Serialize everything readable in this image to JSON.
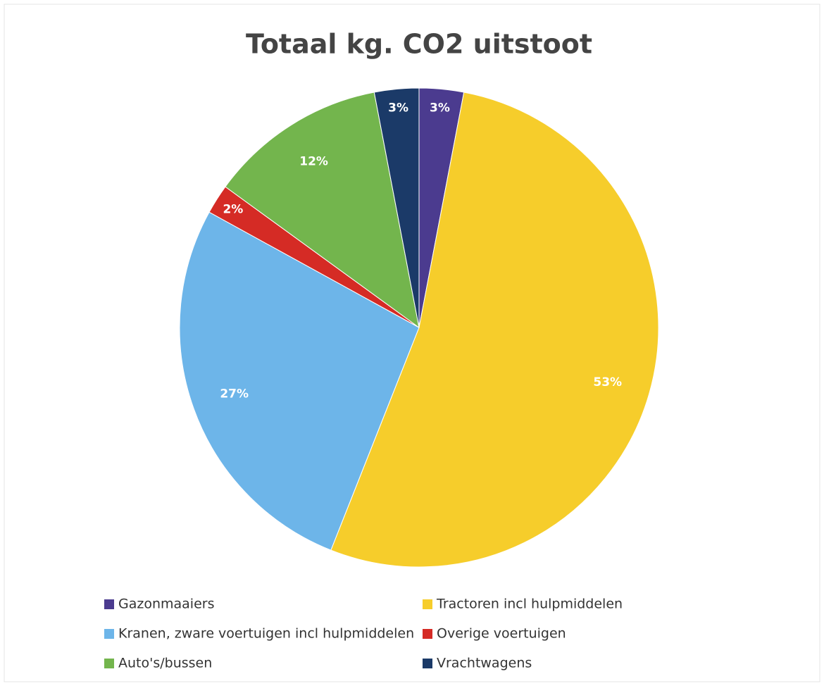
{
  "chart_data": {
    "type": "pie",
    "title": "Totaal kg. CO2 uitstoot",
    "categories": [
      "Gazonmaaiers",
      "Tractoren incl hulpmiddelen",
      "Kranen, zware voertuigen incl hulpmiddelen",
      "Overige voertuigen",
      "Auto's/bussen",
      "Vrachtwagens"
    ],
    "values": [
      3,
      53,
      27,
      2,
      12,
      3
    ],
    "value_labels": [
      "3%",
      "53%",
      "27%",
      "2%",
      "12%",
      "3%"
    ],
    "colors": [
      "#4b3b8f",
      "#f6cd2b",
      "#6db5e9",
      "#d52b25",
      "#73b54d",
      "#1b3a68"
    ],
    "legend": "bottom"
  }
}
